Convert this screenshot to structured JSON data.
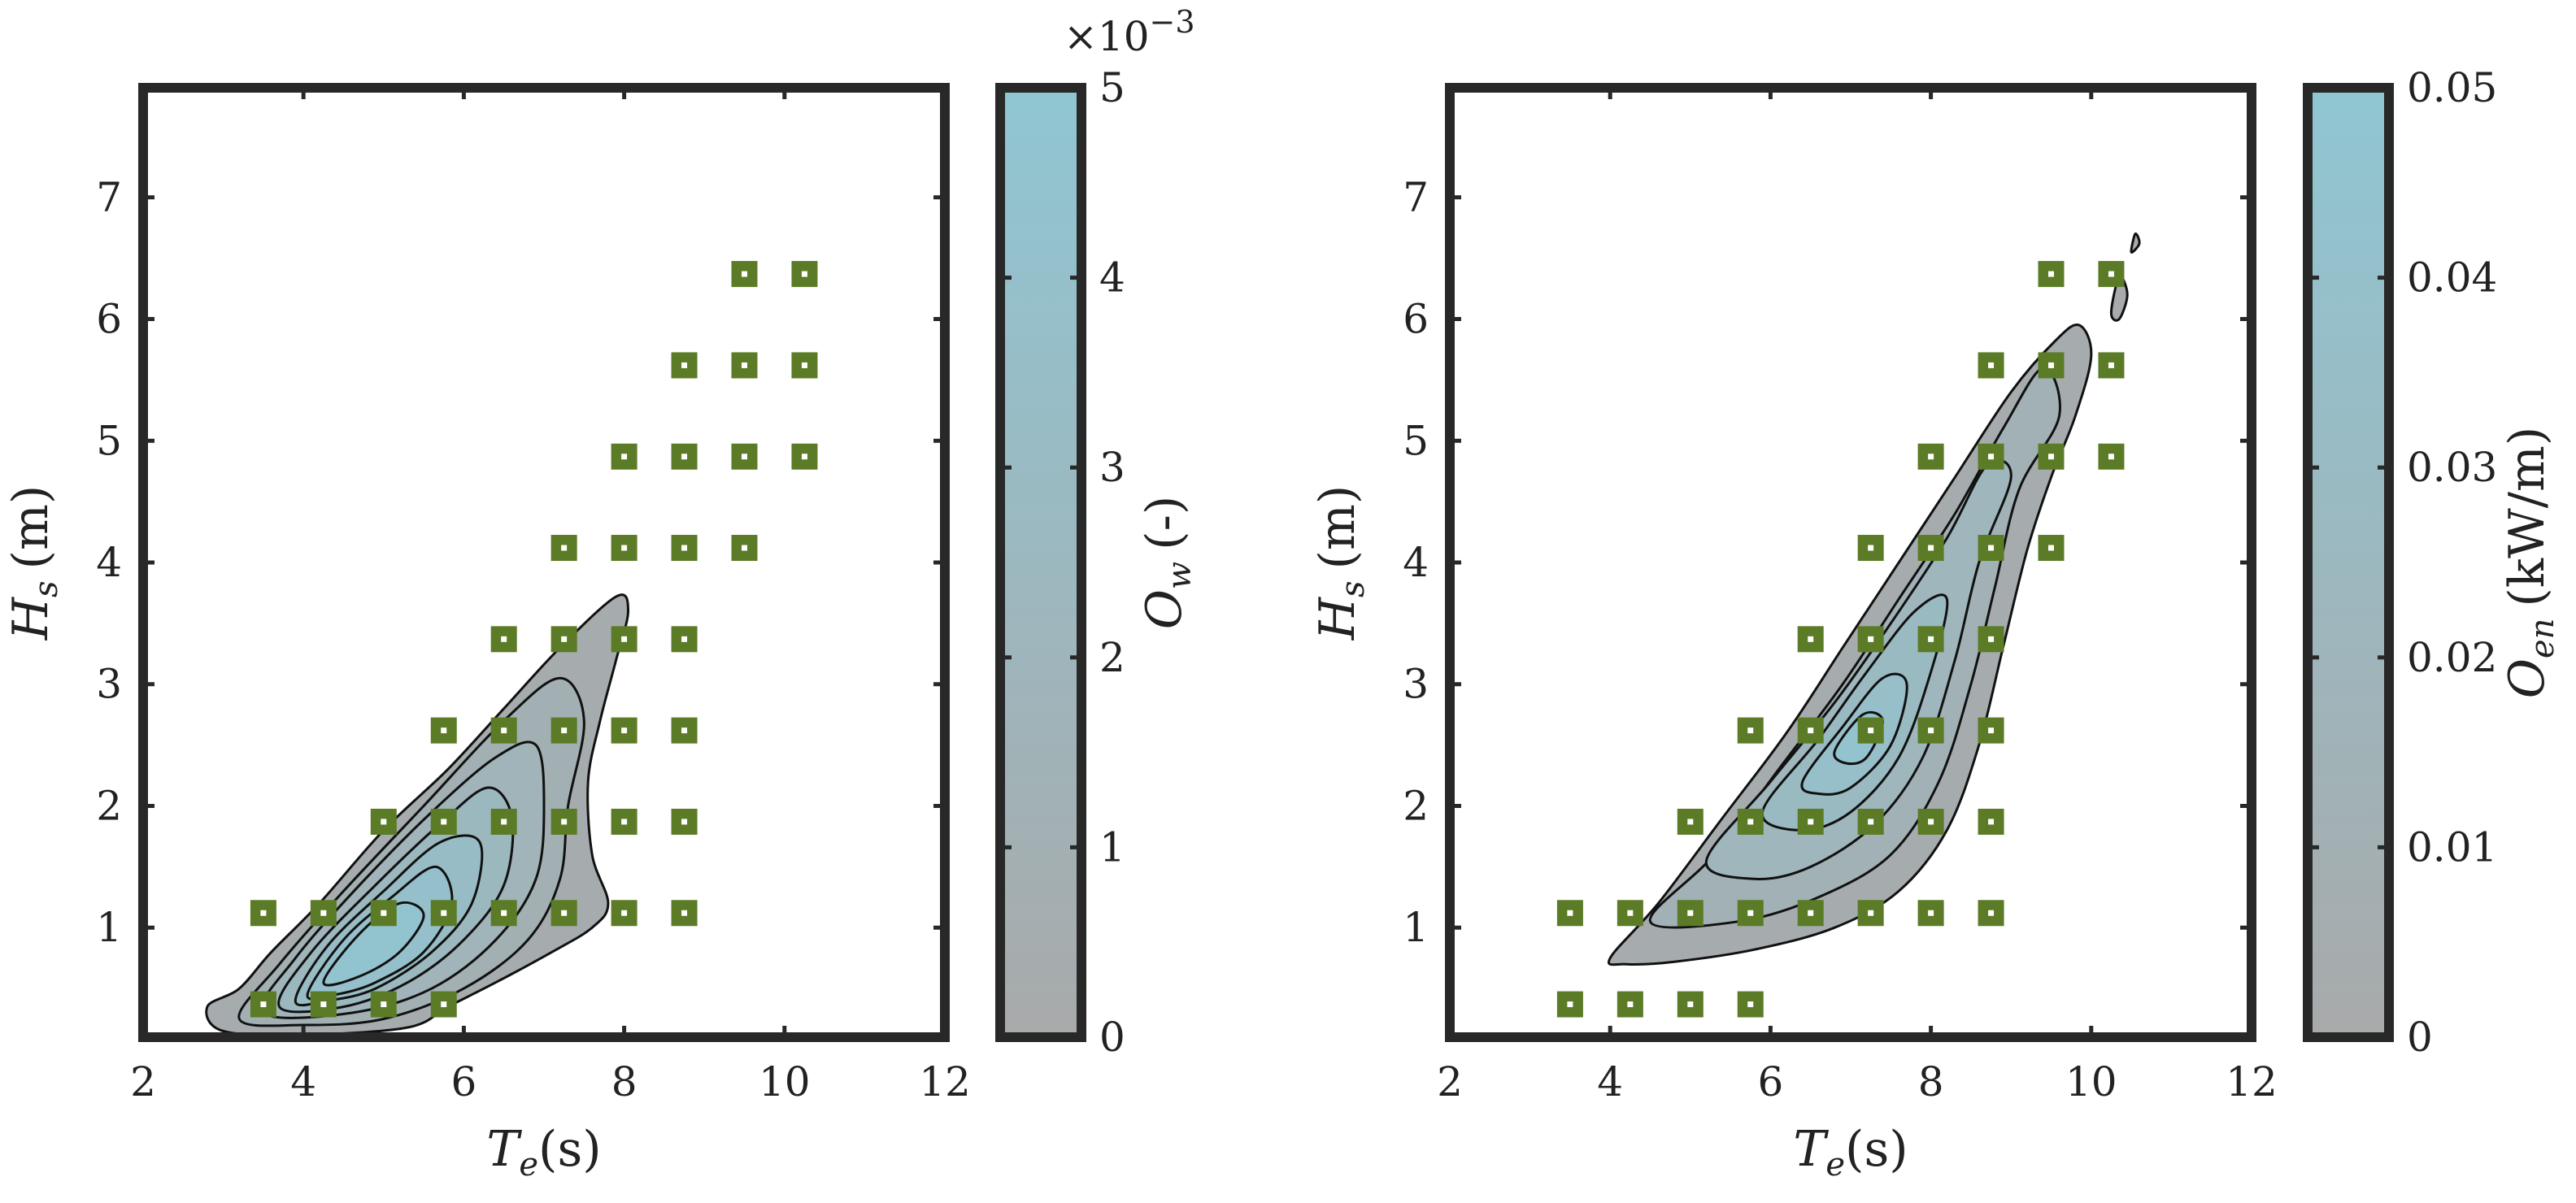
{
  "chart_data": [
    {
      "type": "contour",
      "id": "left",
      "xlabel": {
        "main": "T",
        "sub": "e",
        "rest": "(s)"
      },
      "ylabel": {
        "main": "H",
        "sub": "s",
        "rest": "(m)"
      },
      "xlim": [
        2,
        12
      ],
      "ylim": [
        0.1,
        7.9
      ],
      "xticks": [
        2,
        4,
        6,
        8,
        10,
        12
      ],
      "yticks": [
        1,
        2,
        3,
        4,
        5,
        6,
        7
      ],
      "colorbar": {
        "label": {
          "main": "O",
          "sub": "w",
          "rest": "(-)"
        },
        "ticks": [
          0,
          1,
          2,
          3,
          4,
          5
        ],
        "range": [
          0,
          5
        ],
        "multiplier": "×10",
        "multiplier_exp": "−3",
        "color_low": "#a8aaab",
        "color_high": "#90c6d3"
      },
      "contour_levels": [
        {
          "level": 0.08,
          "shape": [
            [
              2.8,
              0.35
            ],
            [
              3.2,
              0.5
            ],
            [
              3.6,
              0.8
            ],
            [
              4.2,
              1.2
            ],
            [
              5.0,
              1.8
            ],
            [
              5.8,
              2.3
            ],
            [
              6.5,
              2.8
            ],
            [
              7.2,
              3.3
            ],
            [
              7.9,
              3.72
            ],
            [
              8.05,
              3.6
            ],
            [
              7.9,
              3.2
            ],
            [
              7.7,
              2.7
            ],
            [
              7.55,
              2.2
            ],
            [
              7.6,
              1.6
            ],
            [
              7.8,
              1.2
            ],
            [
              7.6,
              1.0
            ],
            [
              7.1,
              0.8
            ],
            [
              6.4,
              0.55
            ],
            [
              5.8,
              0.35
            ],
            [
              5.3,
              0.18
            ],
            [
              4.0,
              0.12
            ],
            [
              3.0,
              0.15
            ]
          ]
        },
        {
          "level": 0.2,
          "shape": [
            [
              3.2,
              0.25
            ],
            [
              3.7,
              0.7
            ],
            [
              4.5,
              1.3
            ],
            [
              5.5,
              2.0
            ],
            [
              6.5,
              2.7
            ],
            [
              7.2,
              3.05
            ],
            [
              7.5,
              2.7
            ],
            [
              7.3,
              2.0
            ],
            [
              7.2,
              1.4
            ],
            [
              6.8,
              0.9
            ],
            [
              6.0,
              0.5
            ],
            [
              5.0,
              0.25
            ],
            [
              4.0,
              0.2
            ]
          ]
        },
        {
          "level": 0.35,
          "shape": [
            [
              3.5,
              0.3
            ],
            [
              3.9,
              0.75
            ],
            [
              4.7,
              1.35
            ],
            [
              5.6,
              1.95
            ],
            [
              6.4,
              2.4
            ],
            [
              6.9,
              2.5
            ],
            [
              7.0,
              2.0
            ],
            [
              6.9,
              1.4
            ],
            [
              6.4,
              0.9
            ],
            [
              5.6,
              0.5
            ],
            [
              4.6,
              0.3
            ]
          ]
        },
        {
          "level": 0.5,
          "shape": [
            [
              3.7,
              0.35
            ],
            [
              4.1,
              0.8
            ],
            [
              4.9,
              1.35
            ],
            [
              5.7,
              1.85
            ],
            [
              6.3,
              2.15
            ],
            [
              6.6,
              1.9
            ],
            [
              6.5,
              1.35
            ],
            [
              6.0,
              0.9
            ],
            [
              5.3,
              0.55
            ],
            [
              4.5,
              0.35
            ]
          ]
        },
        {
          "level": 0.65,
          "shape": [
            [
              3.9,
              0.4
            ],
            [
              4.3,
              0.85
            ],
            [
              5.0,
              1.3
            ],
            [
              5.7,
              1.7
            ],
            [
              6.2,
              1.7
            ],
            [
              6.1,
              1.2
            ],
            [
              5.6,
              0.8
            ],
            [
              4.9,
              0.5
            ],
            [
              4.3,
              0.4
            ]
          ]
        },
        {
          "level": 0.8,
          "shape": [
            [
              4.05,
              0.45
            ],
            [
              4.5,
              0.9
            ],
            [
              5.1,
              1.25
            ],
            [
              5.65,
              1.5
            ],
            [
              5.85,
              1.2
            ],
            [
              5.5,
              0.8
            ],
            [
              4.9,
              0.55
            ],
            [
              4.4,
              0.45
            ]
          ]
        },
        {
          "level": 0.92,
          "shape": [
            [
              4.25,
              0.55
            ],
            [
              4.7,
              0.95
            ],
            [
              5.2,
              1.2
            ],
            [
              5.5,
              1.1
            ],
            [
              5.2,
              0.8
            ],
            [
              4.7,
              0.6
            ]
          ]
        }
      ],
      "data_points": [
        [
          3.5,
          0.37
        ],
        [
          4.25,
          0.37
        ],
        [
          5.0,
          0.37
        ],
        [
          5.75,
          0.37
        ],
        [
          3.5,
          1.12
        ],
        [
          4.25,
          1.12
        ],
        [
          5.0,
          1.12
        ],
        [
          5.75,
          1.12
        ],
        [
          6.5,
          1.12
        ],
        [
          7.25,
          1.12
        ],
        [
          8.0,
          1.12
        ],
        [
          8.75,
          1.12
        ],
        [
          5.0,
          1.87
        ],
        [
          5.75,
          1.87
        ],
        [
          6.5,
          1.87
        ],
        [
          7.25,
          1.87
        ],
        [
          8.0,
          1.87
        ],
        [
          8.75,
          1.87
        ],
        [
          5.75,
          2.62
        ],
        [
          6.5,
          2.62
        ],
        [
          7.25,
          2.62
        ],
        [
          8.0,
          2.62
        ],
        [
          8.75,
          2.62
        ],
        [
          6.5,
          3.37
        ],
        [
          7.25,
          3.37
        ],
        [
          8.0,
          3.37
        ],
        [
          8.75,
          3.37
        ],
        [
          7.25,
          4.12
        ],
        [
          8.0,
          4.12
        ],
        [
          8.75,
          4.12
        ],
        [
          9.5,
          4.12
        ],
        [
          8.0,
          4.87
        ],
        [
          8.75,
          4.87
        ],
        [
          9.5,
          4.87
        ],
        [
          10.25,
          4.87
        ],
        [
          8.75,
          5.62
        ],
        [
          9.5,
          5.62
        ],
        [
          10.25,
          5.62
        ],
        [
          9.5,
          6.37
        ],
        [
          10.25,
          6.37
        ]
      ]
    },
    {
      "type": "contour",
      "id": "right",
      "xlabel": {
        "main": "T",
        "sub": "e",
        "rest": "(s)"
      },
      "ylabel": {
        "main": "H",
        "sub": "s",
        "rest": "(m)"
      },
      "xlim": [
        2,
        12
      ],
      "ylim": [
        0.1,
        7.9
      ],
      "xticks": [
        2,
        4,
        6,
        8,
        10,
        12
      ],
      "yticks": [
        1,
        2,
        3,
        4,
        5,
        6,
        7
      ],
      "colorbar": {
        "label": {
          "main": "O",
          "sub": "en",
          "rest": "(kW/m)"
        },
        "ticks": [
          "0",
          "0.01",
          "0.02",
          "0.03",
          "0.04",
          "0.05"
        ],
        "range": [
          0,
          0.05
        ],
        "color_low": "#a8aaab",
        "color_high": "#90c6d3"
      },
      "contour_levels": [
        {
          "level": 0.08,
          "shape": [
            [
              4.0,
              0.75
            ],
            [
              4.6,
              1.2
            ],
            [
              5.4,
              1.9
            ],
            [
              6.2,
              2.6
            ],
            [
              6.9,
              3.3
            ],
            [
              7.6,
              4.0
            ],
            [
              8.3,
              4.7
            ],
            [
              9.0,
              5.4
            ],
            [
              9.55,
              5.82
            ],
            [
              9.85,
              5.95
            ],
            [
              10.0,
              5.7
            ],
            [
              9.8,
              5.2
            ],
            [
              9.5,
              4.7
            ],
            [
              9.2,
              4.1
            ],
            [
              8.9,
              3.3
            ],
            [
              8.6,
              2.5
            ],
            [
              8.2,
              1.8
            ],
            [
              7.6,
              1.3
            ],
            [
              6.8,
              1.0
            ],
            [
              5.8,
              0.82
            ],
            [
              4.8,
              0.72
            ],
            [
              4.2,
              0.7
            ]
          ]
        },
        {
          "level": 0.25,
          "shape": [
            [
              4.5,
              1.05
            ],
            [
              5.3,
              1.6
            ],
            [
              6.1,
              2.3
            ],
            [
              6.9,
              3.0
            ],
            [
              7.6,
              3.7
            ],
            [
              8.3,
              4.4
            ],
            [
              8.9,
              5.1
            ],
            [
              9.4,
              5.6
            ],
            [
              9.6,
              5.2
            ],
            [
              9.1,
              4.6
            ],
            [
              8.8,
              3.8
            ],
            [
              8.5,
              3.0
            ],
            [
              8.1,
              2.2
            ],
            [
              7.5,
              1.6
            ],
            [
              6.6,
              1.25
            ],
            [
              5.6,
              1.05
            ]
          ]
        },
        {
          "level": 0.42,
          "shape": [
            [
              5.2,
              1.55
            ],
            [
              6.0,
              2.2
            ],
            [
              6.8,
              2.85
            ],
            [
              7.5,
              3.5
            ],
            [
              8.2,
              4.2
            ],
            [
              8.7,
              4.8
            ],
            [
              9.0,
              4.7
            ],
            [
              8.6,
              4.0
            ],
            [
              8.3,
              3.2
            ],
            [
              7.9,
              2.4
            ],
            [
              7.3,
              1.85
            ],
            [
              6.5,
              1.5
            ],
            [
              5.8,
              1.4
            ]
          ]
        },
        {
          "level": 0.58,
          "shape": [
            [
              5.9,
              1.95
            ],
            [
              6.6,
              2.55
            ],
            [
              7.2,
              3.1
            ],
            [
              7.8,
              3.6
            ],
            [
              8.2,
              3.7
            ],
            [
              8.0,
              3.1
            ],
            [
              7.6,
              2.4
            ],
            [
              7.0,
              1.95
            ],
            [
              6.4,
              1.8
            ]
          ]
        },
        {
          "level": 0.75,
          "shape": [
            [
              6.4,
              2.2
            ],
            [
              6.9,
              2.65
            ],
            [
              7.4,
              3.05
            ],
            [
              7.7,
              3.0
            ],
            [
              7.5,
              2.5
            ],
            [
              7.0,
              2.15
            ],
            [
              6.6,
              2.1
            ]
          ]
        },
        {
          "level": 0.88,
          "shape": [
            [
              6.8,
              2.45
            ],
            [
              7.15,
              2.75
            ],
            [
              7.4,
              2.7
            ],
            [
              7.2,
              2.4
            ],
            [
              6.95,
              2.35
            ]
          ]
        }
      ],
      "data_points": [
        [
          3.5,
          0.37
        ],
        [
          4.25,
          0.37
        ],
        [
          5.0,
          0.37
        ],
        [
          5.75,
          0.37
        ],
        [
          3.5,
          1.12
        ],
        [
          4.25,
          1.12
        ],
        [
          5.0,
          1.12
        ],
        [
          5.75,
          1.12
        ],
        [
          6.5,
          1.12
        ],
        [
          7.25,
          1.12
        ],
        [
          8.0,
          1.12
        ],
        [
          8.75,
          1.12
        ],
        [
          5.0,
          1.87
        ],
        [
          5.75,
          1.87
        ],
        [
          6.5,
          1.87
        ],
        [
          7.25,
          1.87
        ],
        [
          8.0,
          1.87
        ],
        [
          8.75,
          1.87
        ],
        [
          5.75,
          2.62
        ],
        [
          6.5,
          2.62
        ],
        [
          7.25,
          2.62
        ],
        [
          8.0,
          2.62
        ],
        [
          8.75,
          2.62
        ],
        [
          6.5,
          3.37
        ],
        [
          7.25,
          3.37
        ],
        [
          8.0,
          3.37
        ],
        [
          8.75,
          3.37
        ],
        [
          7.25,
          4.12
        ],
        [
          8.0,
          4.12
        ],
        [
          8.75,
          4.12
        ],
        [
          9.5,
          4.12
        ],
        [
          8.0,
          4.87
        ],
        [
          8.75,
          4.87
        ],
        [
          9.5,
          4.87
        ],
        [
          10.25,
          4.87
        ],
        [
          8.75,
          5.62
        ],
        [
          9.5,
          5.62
        ],
        [
          10.25,
          5.62
        ],
        [
          9.5,
          6.37
        ],
        [
          10.25,
          6.37
        ]
      ]
    }
  ],
  "colors": {
    "axes": "#282828",
    "marker_fill": "#5b7b26",
    "marker_center": "#ffffff",
    "contour_line": "#111111",
    "text": "#222222"
  }
}
